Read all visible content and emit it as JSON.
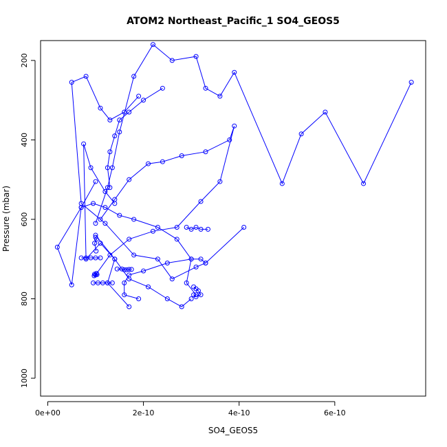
{
  "chart_data": {
    "type": "scatter",
    "title": "ATOM2 Northeast_Pacific_1 SO4_GEOS5",
    "xlabel": "SO4_GEOS5",
    "ylabel": "Pressure (mbar)",
    "xlim": [
      -1.5e-11,
      7.9e-10
    ],
    "ylim": [
      1045,
      150
    ],
    "y_reversed": true,
    "x_ticks": [
      {
        "value": 0,
        "label": "0e+00"
      },
      {
        "value": 2e-10,
        "label": "2e-10"
      },
      {
        "value": 4e-10,
        "label": "4e-10"
      },
      {
        "value": 6e-10,
        "label": "6e-10"
      }
    ],
    "y_ticks": [
      {
        "value": 200,
        "label": "200"
      },
      {
        "value": 400,
        "label": "400"
      },
      {
        "value": 600,
        "label": "600"
      },
      {
        "value": 800,
        "label": "800"
      },
      {
        "value": 1000,
        "label": "1000"
      }
    ],
    "grid": false,
    "marker": "open-circle",
    "line_color": "#0000ff",
    "series": [
      {
        "x": [
          1.7e-10,
          1.25e-10,
          1.4e-10,
          1e-10
        ],
        "y": [
          820,
          760,
          700,
          640
        ]
      },
      {
        "x": [
          1e-10,
          1.25e-10,
          1.35e-10,
          1.5e-10,
          1.8e-10,
          2.2e-10,
          2.6e-10,
          3.1e-10,
          3.3e-10,
          3.6e-10,
          3.9e-10,
          4.9e-10,
          5.3e-10,
          5.8e-10,
          6.6e-10,
          7.6e-10
        ],
        "y": [
          610,
          520,
          470,
          380,
          240,
          160,
          200,
          190,
          270,
          290,
          230,
          510,
          385,
          330,
          510,
          255
        ]
      },
      {
        "x": [
          3.1e-10,
          2.9e-10,
          3e-10,
          2.7e-10,
          2.3e-10,
          1.8e-10,
          1.5e-10,
          1.2e-10,
          9.5e-11,
          7e-11,
          5e-11,
          2e-11,
          7e-11,
          1e-10
        ],
        "y": [
          790,
          760,
          700,
          650,
          620,
          600,
          590,
          570,
          560,
          570,
          765,
          670,
          570,
          505
        ]
      },
      {
        "x": [
          3e-10,
          2.8e-10,
          2.5e-10,
          2.1e-10,
          1.7e-10,
          1.4e-10,
          1.1e-10,
          8e-11,
          7.5e-11,
          9e-11,
          1.2e-10,
          1.4e-10
        ],
        "y": [
          800,
          820,
          800,
          770,
          750,
          700,
          660,
          700,
          410,
          470,
          530,
          560
        ]
      },
      {
        "x": [
          4.1e-10,
          3.3e-10,
          3.1e-10,
          2.6e-10,
          2.3e-10,
          1.8e-10,
          1.2e-10,
          7e-11,
          5e-11,
          8e-11,
          1.1e-10,
          1.3e-10,
          1.6e-10,
          1.9e-10
        ],
        "y": [
          620,
          710,
          720,
          750,
          700,
          690,
          610,
          560,
          255,
          240,
          320,
          350,
          330,
          290
        ]
      },
      {
        "x": [
          1e-10,
          1.3e-10,
          1.7e-10,
          2.2e-10,
          2.7e-10,
          3.2e-10,
          3.6e-10,
          3.9e-10,
          3.8e-10,
          3.3e-10,
          2.8e-10,
          2.4e-10,
          2.1e-10,
          1.7e-10,
          1.4e-10,
          1.1e-10
        ],
        "y": [
          740,
          690,
          650,
          630,
          620,
          555,
          505,
          365,
          400,
          430,
          440,
          455,
          460,
          500,
          550,
          600
        ]
      },
      {
        "x": [
          2.4e-10,
          2e-10,
          1.7e-10,
          1.5e-10,
          1.4e-10,
          1.3e-10,
          1.25e-10,
          1.3e-10
        ],
        "y": [
          270,
          300,
          330,
          350,
          390,
          430,
          470,
          520
        ]
      },
      {
        "x": [
          1.9e-10,
          1.6e-10,
          1.6e-10,
          1.7e-10,
          2e-10,
          2.5e-10,
          3e-10,
          3.2e-10,
          3.3e-10
        ],
        "y": [
          800,
          790,
          760,
          740,
          730,
          710,
          700,
          700,
          710
        ]
      },
      {
        "x": [
          1.45e-10,
          1.55e-10,
          1.6e-10,
          1.65e-10,
          1.7e-10,
          1.75e-10
        ],
        "y": [
          725,
          725,
          727,
          727,
          726,
          726
        ]
      },
      {
        "x": [
          9.8e-11,
          1e-10,
          1.02e-10,
          9.7e-11,
          1.03e-10
        ],
        "y": [
          738,
          740,
          736,
          742,
          739
        ]
      },
      {
        "x": [
          7e-11,
          8e-11,
          9e-11,
          1e-10,
          1.1e-10
        ],
        "y": [
          697,
          697,
          697,
          697,
          697
        ]
      },
      {
        "x": [
          9.5e-11,
          1.05e-10,
          1.15e-10,
          1.25e-10,
          1.35e-10
        ],
        "y": [
          760,
          760,
          760,
          760,
          760
        ]
      },
      {
        "x": [
          3.05e-10,
          3.1e-10,
          3.15e-10,
          3.2e-10,
          3.1e-10,
          3.05e-10
        ],
        "y": [
          770,
          775,
          780,
          790,
          795,
          790
        ]
      },
      {
        "x": [
          2.9e-10,
          3e-10,
          3.1e-10,
          3.2e-10,
          3.35e-10
        ],
        "y": [
          620,
          625,
          620,
          625,
          625
        ]
      },
      {
        "x": [
          1e-10,
          1.02e-10,
          9.8e-11,
          1.01e-10
        ],
        "y": [
          645,
          650,
          660,
          680
        ]
      }
    ]
  }
}
